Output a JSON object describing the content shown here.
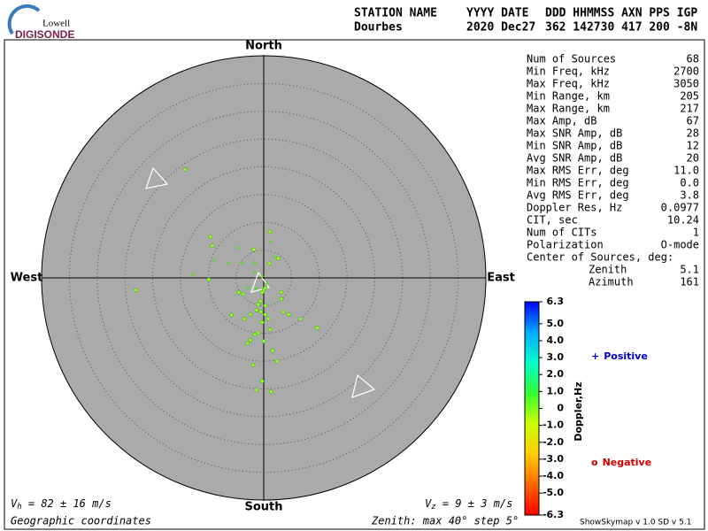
{
  "header": {
    "logo_top": "Lowell",
    "logo_bottom": "DIGISONDE",
    "labels": [
      "STATION NAME",
      "YYYY DATE",
      "DDD HHMMSS AXN PPS IGP"
    ],
    "values": [
      "Dourbes",
      "2020 Dec27",
      "362 142730 417 200 -8N"
    ]
  },
  "stats": {
    "rows": [
      {
        "label": "Num of Sources",
        "value": "68"
      },
      {
        "label": "Min Freq, kHz",
        "value": "2700"
      },
      {
        "label": "Max Freq, kHz",
        "value": "3050"
      },
      {
        "label": "Min Range, km",
        "value": "205"
      },
      {
        "label": "Max Range, km",
        "value": "217"
      },
      {
        "label": "Max Amp, dB",
        "value": "67"
      },
      {
        "label": "Max SNR Amp, dB",
        "value": "28"
      },
      {
        "label": "Min SNR Amp, dB",
        "value": "12"
      },
      {
        "label": "Avg SNR Amp, dB",
        "value": "20"
      },
      {
        "label": "Max RMS Err, deg",
        "value": "11.0"
      },
      {
        "label": "Min RMS Err, deg",
        "value": "0.0"
      },
      {
        "label": "Avg RMS Err, deg",
        "value": "3.8"
      },
      {
        "label": "Doppler Res, Hz",
        "value": "0.0977"
      },
      {
        "label": "CIT, sec",
        "value": "10.24"
      },
      {
        "label": "Num of CITs",
        "value": "1"
      },
      {
        "label": "Polarization",
        "value": "O-mode"
      },
      {
        "label": "Center of Sources, deg:",
        "value": ""
      }
    ],
    "center": [
      {
        "label": "Zenith",
        "value": "5.1"
      },
      {
        "label": "Azimuth",
        "value": "161"
      }
    ]
  },
  "chart_data": {
    "type": "scatter",
    "compass": {
      "north": "North",
      "south": "South",
      "west": "West",
      "east": "East"
    },
    "xlim": [
      -40,
      40
    ],
    "ylim": [
      -40,
      40
    ],
    "rings": [
      5,
      10,
      15,
      20,
      25,
      30,
      35
    ],
    "series": [
      {
        "name": "Positive",
        "marker": "plus",
        "color": "#55dd22",
        "legend_color": "#0000cc",
        "x": [
          -4.5,
          -6.4,
          -4.0,
          -9.0,
          -12.8,
          -1.6,
          -0.3,
          1.1,
          1.9,
          -1.6,
          -2.9,
          -1.4,
          0.6
        ],
        "values": [
          5.4,
          2.7,
          2.7,
          3.2,
          0.6,
          2.6,
          0.3,
          6.6,
          3.8,
          1.0,
          -1.8,
          -1.9,
          -1.0
        ]
      },
      {
        "name": "Negative",
        "marker": "circle",
        "color": "#99ff33",
        "legend_color": "#cc0000",
        "x": [
          -14.2,
          -9.6,
          -9.3,
          -1.8,
          1.1,
          1.0,
          2.6,
          -9.9,
          -23.0,
          -4.5,
          -3.7,
          0,
          -0.3,
          0.3,
          -0.6,
          -1.0,
          3.2,
          3.5,
          4.5,
          6.6,
          -5.8,
          -1.3,
          -0.5,
          0.3,
          0.8,
          -0.3,
          1.1,
          -1.0,
          -1.6,
          -2.4,
          -2.9,
          0,
          1.6,
          2.4,
          -1.9,
          -0.3,
          -1.3,
          1.3,
          -3.5,
          -2.4,
          0.3,
          9.6,
          3.2
        ],
        "values": [
          19.5,
          7.4,
          5.8,
          5.1,
          8.3,
          2.6,
          3.5,
          -0.3,
          -2.2,
          -2.6,
          -2.9,
          -2.2,
          -2.6,
          -1.8,
          -4.2,
          -4.8,
          -3.8,
          -6.1,
          -6.6,
          -7.4,
          -6.7,
          -5.8,
          -6.1,
          -6.6,
          -7.4,
          -8.0,
          -9.3,
          -9.9,
          -10.2,
          -11.2,
          -11.8,
          -11.4,
          -13.1,
          -15.0,
          -15.7,
          -18.6,
          -20.2,
          -20.5,
          -7.4,
          -6.6,
          -5.0,
          -9.0,
          -2.6
        ]
      }
    ],
    "colorbar": {
      "label": "Doppler,Hz",
      "lim": [
        -6.3,
        6.3
      ],
      "colors": [
        "#ff0000",
        "#ff6600",
        "#ffcc00",
        "#ccff00",
        "#33ff33",
        "#00ffcc",
        "#00aaff",
        "#0000ff"
      ],
      "ticks": [
        6.3,
        {
          "value": 5,
          "label": "5.0"
        },
        {
          "value": 4,
          "label": "4.0"
        },
        {
          "value": 3,
          "label": "3.0"
        },
        {
          "value": 2,
          "label": "2.0"
        },
        {
          "value": 1,
          "label": "1.0"
        },
        0,
        {
          "value": -1,
          "label": "-1.0"
        },
        {
          "value": -2,
          "label": "-2.0"
        },
        {
          "value": -3,
          "label": "-3.0"
        },
        {
          "value": -4,
          "label": "-4.0"
        },
        {
          "value": -5,
          "label": "-5.0"
        },
        -6.3
      ]
    }
  },
  "footer": {
    "vh": {
      "symbol": "V",
      "sub": "h",
      "text": " = 82 ± 16 m/s"
    },
    "vz": {
      "symbol": "V",
      "sub": "z",
      "text": " = 9 ± 3 m/s"
    },
    "coords": "Geographic coordinates",
    "zenith": "Zenith: max 40°  step 5°",
    "version": "ShowSkymap v 1.0  SD v 5.1"
  }
}
